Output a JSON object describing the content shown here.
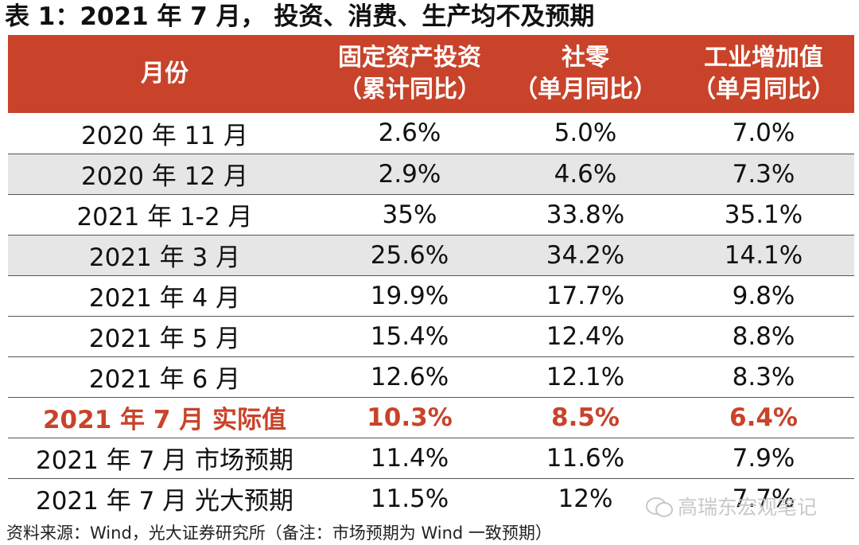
{
  "title": "表 1：2021 年 7 月， 投资、消费、生产均不及预期",
  "table": {
    "headers": [
      {
        "line1": "月份",
        "line2": ""
      },
      {
        "line1": "固定资产投资",
        "line2": "（累计同比）"
      },
      {
        "line1": "社零",
        "line2": "（单月同比）"
      },
      {
        "line1": "工业增加值",
        "line2": "（单月同比）"
      }
    ],
    "rows": [
      {
        "month": "2020 年 11 月",
        "fai": "2.6%",
        "retail": "5.0%",
        "industry": "7.0%"
      },
      {
        "month": "2020 年 12 月",
        "fai": "2.9%",
        "retail": "4.6%",
        "industry": "7.3%"
      },
      {
        "month": "2021 年 1-2 月",
        "fai": "35%",
        "retail": "33.8%",
        "industry": "35.1%"
      },
      {
        "month": "2021 年  3 月",
        "fai": "25.6%",
        "retail": "34.2%",
        "industry": "14.1%"
      },
      {
        "month": "2021 年  4 月",
        "fai": "19.9%",
        "retail": "17.7%",
        "industry": "9.8%"
      },
      {
        "month": "2021 年 5 月",
        "fai": "15.4%",
        "retail": "12.4%",
        "industry": "8.8%"
      },
      {
        "month": "2021 年 6 月",
        "fai": "12.6%",
        "retail": "12.1%",
        "industry": "8.3%"
      },
      {
        "month": "2021 年 7 月  实际值",
        "fai": "10.3%",
        "retail": "8.5%",
        "industry": "6.4%"
      },
      {
        "month": "2021 年 7 月  市场预期",
        "fai": "11.4%",
        "retail": "11.6%",
        "industry": "7.9%"
      },
      {
        "month": "2021 年 7 月  光大预期",
        "fai": "11.5%",
        "retail": "12%",
        "industry": "7.7%"
      }
    ]
  },
  "source": "资料来源：Wind，光大证券研究所（备注：市场预期为 Wind 一致预期）",
  "watermark": "高瑞东宏观笔记",
  "colors": {
    "header_bg": "#c8432a",
    "highlight_text": "#c8432a",
    "alt_row_bg": "#e6e6e6"
  }
}
